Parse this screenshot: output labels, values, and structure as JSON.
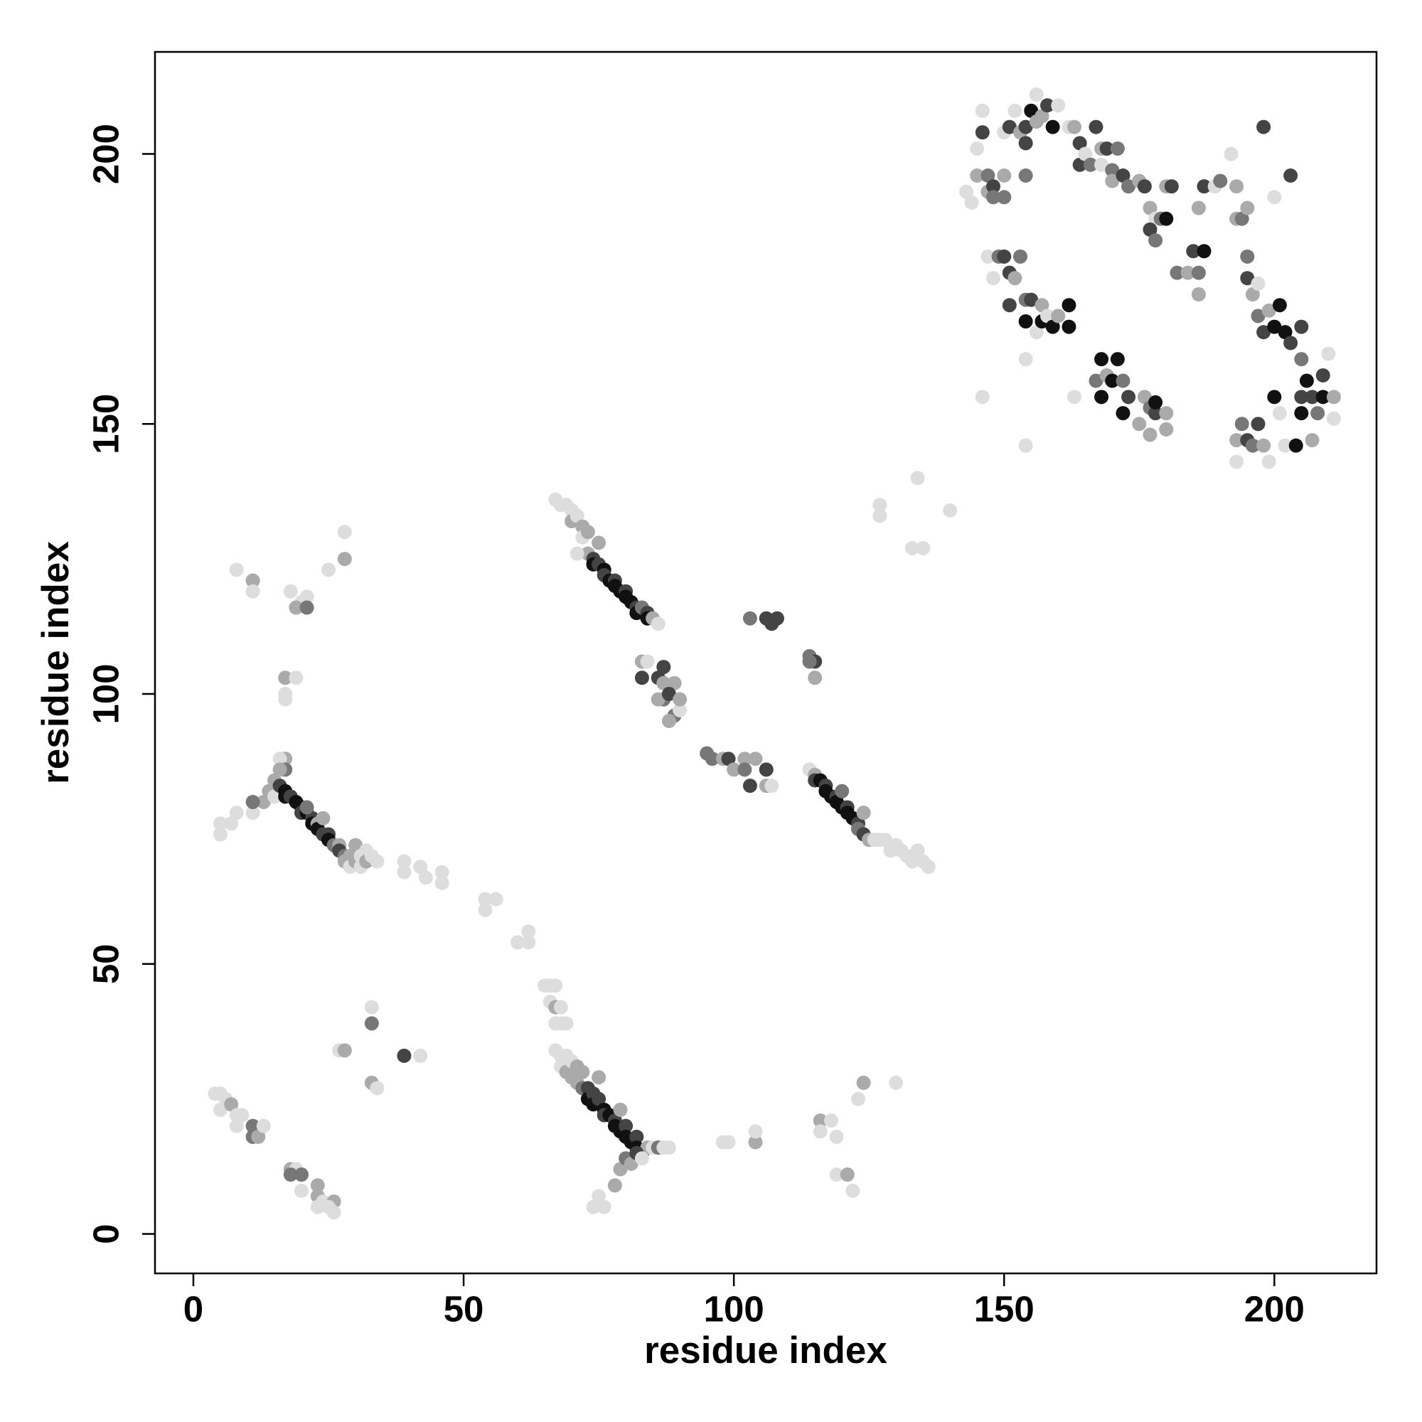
{
  "chart_data": {
    "type": "scatter",
    "x_label": "residue index",
    "y_label": "residue index",
    "xlim": [
      -7.1,
      218.9
    ],
    "ylim": [
      -7.3,
      218.9
    ],
    "xticks": [
      0,
      50,
      100,
      150,
      200
    ],
    "yticks": [
      0,
      50,
      100,
      150,
      200
    ],
    "x": [
      4,
      5,
      6,
      5,
      7,
      8,
      9,
      8,
      11,
      11,
      12,
      13,
      18,
      19,
      18,
      20,
      20,
      23,
      23,
      24,
      26,
      25,
      26,
      23,
      27,
      28,
      33,
      33,
      33,
      34,
      39,
      42,
      67,
      68,
      68,
      69,
      69,
      70,
      70,
      71,
      71,
      72,
      72,
      73,
      73,
      74,
      74,
      75,
      76,
      76,
      77,
      78,
      78,
      79,
      80,
      80,
      81,
      82,
      82,
      83,
      84,
      85,
      86,
      87,
      88,
      75,
      79,
      65,
      66,
      67,
      66,
      67,
      68,
      67,
      68,
      69,
      74,
      75,
      76,
      78,
      79,
      80,
      81,
      82,
      83,
      54,
      54,
      56,
      60,
      62,
      62,
      39,
      39,
      42,
      43,
      46,
      46,
      5,
      5,
      7,
      8,
      11,
      13,
      11,
      14,
      15,
      17,
      19,
      17,
      17,
      18,
      20,
      19,
      21,
      21,
      8,
      11,
      11,
      25,
      28,
      28,
      15,
      16,
      17,
      17,
      18,
      19,
      20,
      20,
      21,
      22,
      22,
      23,
      23,
      24,
      25,
      25,
      26,
      27,
      27,
      28,
      28,
      29,
      29,
      30,
      30,
      31,
      31,
      32,
      32,
      33,
      34,
      21,
      24,
      17,
      16,
      17,
      16,
      67,
      68,
      69,
      70,
      70,
      71,
      72,
      72,
      73,
      73,
      74,
      74,
      75,
      76,
      76,
      77,
      78,
      78,
      79,
      80,
      80,
      81,
      82,
      82,
      83,
      84,
      84,
      85,
      86,
      71,
      75,
      83,
      84,
      87,
      83,
      86,
      87,
      89,
      87,
      86,
      88,
      89,
      88,
      90,
      90,
      95,
      96,
      98,
      99,
      100,
      102,
      102,
      103,
      104,
      106,
      106,
      107,
      103,
      106,
      107,
      108,
      114,
      115,
      114,
      115,
      114,
      115,
      115,
      116,
      117,
      117,
      118,
      119,
      119,
      120,
      121,
      121,
      122,
      123,
      123,
      124,
      125,
      126,
      127,
      128,
      129,
      130,
      131,
      132,
      133,
      134,
      135,
      136,
      120,
      124,
      98,
      99,
      104,
      104,
      116,
      116,
      118,
      119,
      119,
      121,
      122,
      123,
      124,
      130,
      127,
      127,
      134,
      133,
      135,
      140,
      143,
      144,
      145,
      145,
      146,
      146,
      147,
      147,
      148,
      148,
      150,
      150,
      150,
      151,
      152,
      153,
      154,
      154,
      154,
      155,
      156,
      156,
      157,
      158,
      159,
      160,
      162,
      163,
      164,
      164,
      165,
      166,
      167,
      168,
      168,
      169,
      170,
      170,
      171,
      172,
      173,
      175,
      176,
      177,
      178,
      177,
      178,
      179,
      180,
      180,
      181,
      182,
      184,
      185,
      186,
      186,
      187,
      186,
      187,
      189,
      190,
      192,
      193,
      193,
      194,
      195,
      195,
      195,
      196,
      197,
      197,
      198,
      200,
      203,
      147,
      148,
      149,
      150,
      151,
      151,
      152,
      153,
      154,
      154,
      155,
      156,
      157,
      157,
      158,
      159,
      160,
      162,
      162,
      163,
      154,
      154,
      146,
      168,
      167,
      168,
      169,
      170,
      171,
      172,
      172,
      173,
      175,
      176,
      177,
      177,
      178,
      180,
      180,
      178,
      193,
      193,
      194,
      195,
      196,
      197,
      198,
      199,
      200,
      201,
      202,
      204,
      205,
      205,
      206,
      207,
      207,
      208,
      209,
      209,
      210,
      211,
      211,
      198,
      199,
      200,
      201,
      202,
      203,
      205,
      205
    ],
    "values": [
      26,
      26,
      25,
      23,
      24,
      22,
      22,
      20,
      20,
      18,
      18,
      20,
      12,
      12,
      11,
      11,
      8,
      9,
      7,
      6,
      6,
      5,
      4,
      5,
      34,
      34,
      39,
      42,
      28,
      27,
      33,
      33,
      34,
      33,
      31,
      33,
      30,
      32,
      29,
      31,
      28,
      30,
      27,
      27,
      25,
      26,
      24,
      25,
      23,
      22,
      22,
      21,
      20,
      19,
      20,
      18,
      17,
      18,
      16,
      15,
      16,
      16,
      16,
      16,
      16,
      29,
      23,
      46,
      46,
      46,
      43,
      42,
      42,
      39,
      39,
      39,
      5,
      7,
      5,
      9,
      12,
      14,
      13,
      15,
      14,
      62,
      60,
      62,
      54,
      54,
      56,
      69,
      67,
      68,
      66,
      67,
      65,
      76,
      74,
      76,
      78,
      78,
      80,
      80,
      82,
      81,
      103,
      103,
      100,
      99,
      119,
      117,
      116,
      118,
      116,
      123,
      121,
      119,
      123,
      125,
      130,
      84,
      83,
      82,
      81,
      81,
      80,
      79,
      78,
      78,
      77,
      76,
      76,
      75,
      74,
      74,
      73,
      72,
      72,
      71,
      70,
      69,
      70,
      68,
      72,
      69,
      70,
      68,
      71,
      69,
      70,
      69,
      79,
      77,
      88,
      88,
      86,
      86,
      136,
      135,
      135,
      134,
      132,
      133,
      131,
      129,
      130,
      126,
      125,
      124,
      124,
      123,
      122,
      121,
      121,
      120,
      119,
      119,
      118,
      117,
      116,
      115,
      116,
      115,
      114,
      114,
      113,
      126,
      128,
      106,
      106,
      105,
      103,
      103,
      102,
      102,
      99,
      99,
      100,
      96,
      95,
      97,
      99,
      89,
      88,
      88,
      88,
      86,
      88,
      86,
      83,
      88,
      86,
      83,
      83,
      114,
      114,
      113,
      114,
      107,
      106,
      106,
      103,
      86,
      85,
      84,
      84,
      83,
      82,
      81,
      81,
      80,
      79,
      79,
      78,
      77,
      76,
      75,
      74,
      73,
      73,
      73,
      73,
      71,
      72,
      71,
      70,
      69,
      71,
      69,
      68,
      82,
      78,
      17,
      17,
      17,
      19,
      21,
      19,
      21,
      18,
      11,
      11,
      8,
      25,
      28,
      28,
      135,
      133,
      140,
      127,
      127,
      134,
      193,
      191,
      196,
      201,
      204,
      208,
      196,
      193,
      194,
      192,
      196,
      192,
      204,
      205,
      208,
      204,
      205,
      202,
      196,
      208,
      206,
      211,
      207,
      209,
      205,
      209,
      205,
      205,
      202,
      198,
      200,
      198,
      205,
      201,
      198,
      201,
      197,
      195,
      201,
      196,
      194,
      195,
      194,
      190,
      188,
      186,
      184,
      188,
      188,
      194,
      194,
      178,
      178,
      182,
      178,
      174,
      182,
      190,
      194,
      194,
      195,
      200,
      194,
      188,
      188,
      190,
      181,
      177,
      174,
      176,
      170,
      205,
      192,
      196,
      181,
      177,
      181,
      181,
      178,
      172,
      177,
      181,
      173,
      169,
      173,
      167,
      172,
      169,
      170,
      168,
      170,
      168,
      172,
      155,
      162,
      146,
      155,
      162,
      158,
      155,
      159,
      158,
      162,
      158,
      152,
      155,
      150,
      155,
      153,
      148,
      152,
      149,
      152,
      154,
      143,
      147,
      150,
      147,
      146,
      150,
      146,
      143,
      155,
      152,
      146,
      146,
      152,
      155,
      158,
      155,
      147,
      152,
      159,
      155,
      163,
      155,
      151,
      167,
      171,
      168,
      172,
      167,
      165,
      168,
      162
    ],
    "colors": [
      "#ddd",
      "#ddd",
      "#ddd",
      "#ddd",
      "#aaa",
      "#ddd",
      "#ddd",
      "#ddd",
      "#777",
      "#777",
      "#aaa",
      "#ddd",
      "#aaa",
      "#ddd",
      "#777",
      "#777",
      "#ddd",
      "#aaa",
      "#aaa",
      "#ddd",
      "#aaa",
      "#ddd",
      "#ddd",
      "#ddd",
      "#ddd",
      "#aaa",
      "#777",
      "#ddd",
      "#aaa",
      "#ddd",
      "#444",
      "#ddd",
      "#ddd",
      "#ddd",
      "#ddd",
      "#ddd",
      "#aaa",
      "#ddd",
      "#aaa",
      "#aaa",
      "#aaa",
      "#aaa",
      "#777",
      "#444",
      "#111",
      "#444",
      "#111",
      "#444",
      "#111",
      "#444",
      "#111",
      "#444",
      "#111",
      "#111",
      "#444",
      "#111",
      "#111",
      "#444",
      "#111",
      "#111",
      "#aaa",
      "#ddd",
      "#777",
      "#ddd",
      "#ddd",
      "#aaa",
      "#aaa",
      "#ddd",
      "#ddd",
      "#ddd",
      "#ddd",
      "#aaa",
      "#ddd",
      "#ddd",
      "#ddd",
      "#ddd",
      "#ddd",
      "#ddd",
      "#ddd",
      "#aaa",
      "#aaa",
      "#777",
      "#aaa",
      "#444",
      "#ddd",
      "#ddd",
      "#ddd",
      "#ddd",
      "#ddd",
      "#ddd",
      "#ddd",
      "#ddd",
      "#ddd",
      "#ddd",
      "#ddd",
      "#ddd",
      "#ddd",
      "#ddd",
      "#ddd",
      "#ddd",
      "#ddd",
      "#ddd",
      "#aaa",
      "#777",
      "#aaa",
      "#ddd",
      "#aaa",
      "#ddd",
      "#ddd",
      "#ddd",
      "#ddd",
      "#ddd",
      "#aaa",
      "#ddd",
      "#777",
      "#ddd",
      "#aaa",
      "#ddd",
      "#ddd",
      "#aaa",
      "#ddd",
      "#aaa",
      "#444",
      "#111",
      "#111",
      "#444",
      "#111",
      "#111",
      "#444",
      "#111",
      "#444",
      "#111",
      "#aaa",
      "#111",
      "#444",
      "#444",
      "#111",
      "#777",
      "#aaa",
      "#444",
      "#777",
      "#aaa",
      "#aaa",
      "#ddd",
      "#aaa",
      "#aaa",
      "#ddd",
      "#ddd",
      "#ddd",
      "#aaa",
      "#ddd",
      "#ddd",
      "#777",
      "#aaa",
      "#aaa",
      "#ddd",
      "#777",
      "#aaa",
      "#ddd",
      "#ddd",
      "#ddd",
      "#ddd",
      "#aaa",
      "#ddd",
      "#aaa",
      "#ddd",
      "#aaa",
      "#aaa",
      "#444",
      "#111",
      "#444",
      "#111",
      "#444",
      "#111",
      "#444",
      "#111",
      "#111",
      "#444",
      "#111",
      "#111",
      "#444",
      "#111",
      "#777",
      "#444",
      "#111",
      "#aaa",
      "#ddd",
      "#ddd",
      "#aaa",
      "#aaa",
      "#ddd",
      "#444",
      "#444",
      "#444",
      "#aaa",
      "#aaa",
      "#777",
      "#aaa",
      "#444",
      "#777",
      "#aaa",
      "#ddd",
      "#aaa",
      "#777",
      "#777",
      "#aaa",
      "#444",
      "#aaa",
      "#aaa",
      "#777",
      "#444",
      "#aaa",
      "#444",
      "#aaa",
      "#ddd",
      "#777",
      "#444",
      "#444",
      "#444",
      "#777",
      "#444",
      "#777",
      "#aaa",
      "#ddd",
      "#aaa",
      "#444",
      "#111",
      "#444",
      "#111",
      "#111",
      "#444",
      "#111",
      "#111",
      "#444",
      "#111",
      "#111",
      "#444",
      "#777",
      "#444",
      "#aaa",
      "#ddd",
      "#ddd",
      "#ddd",
      "#ddd",
      "#ddd",
      "#ddd",
      "#ddd",
      "#ddd",
      "#ddd",
      "#ddd",
      "#ddd",
      "#777",
      "#aaa",
      "#ddd",
      "#ddd",
      "#aaa",
      "#ddd",
      "#aaa",
      "#ddd",
      "#ddd",
      "#ddd",
      "#ddd",
      "#aaa",
      "#ddd",
      "#ddd",
      "#aaa",
      "#ddd",
      "#ddd",
      "#ddd",
      "#ddd",
      "#ddd",
      "#ddd",
      "#ddd",
      "#ddd",
      "#ddd",
      "#aaa",
      "#ddd",
      "#444",
      "#ddd",
      "#777",
      "#aaa",
      "#444",
      "#777",
      "#aaa",
      "#777",
      "#ddd",
      "#444",
      "#ddd",
      "#aaa",
      "#444",
      "#444",
      "#777",
      "#111",
      "#aaa",
      "#ddd",
      "#aaa",
      "#444",
      "#111",
      "#ddd",
      "#ddd",
      "#aaa",
      "#444",
      "#444",
      "#ddd",
      "#777",
      "#444",
      "#aaa",
      "#ddd",
      "#444",
      "#777",
      "#aaa",
      "#777",
      "#444",
      "#777",
      "#aaa",
      "#444",
      "#aaa",
      "#ddd",
      "#444",
      "#777",
      "#777",
      "#111",
      "#aaa",
      "#444",
      "#777",
      "#aaa",
      "#444",
      "#777",
      "#aaa",
      "#111",
      "#aaa",
      "#444",
      "#ddd",
      "#777",
      "#ddd",
      "#aaa",
      "#aaa",
      "#777",
      "#aaa",
      "#777",
      "#444",
      "#aaa",
      "#ddd",
      "#777",
      "#444",
      "#ddd",
      "#444",
      "#ddd",
      "#ddd",
      "#777",
      "#444",
      "#444",
      "#444",
      "#aaa",
      "#777",
      "#777",
      "#111",
      "#444",
      "#ddd",
      "#aaa",
      "#111",
      "#ddd",
      "#111",
      "#aaa",
      "#111",
      "#111",
      "#ddd",
      "#ddd",
      "#ddd",
      "#ddd",
      "#111",
      "#777",
      "#111",
      "#aaa",
      "#111",
      "#111",
      "#777",
      "#111",
      "#444",
      "#aaa",
      "#aaa",
      "#777",
      "#aaa",
      "#444",
      "#aaa",
      "#aaa",
      "#111",
      "#ddd",
      "#aaa",
      "#777",
      "#444",
      "#777",
      "#444",
      "#aaa",
      "#ddd",
      "#111",
      "#ddd",
      "#ddd",
      "#111",
      "#111",
      "#444",
      "#111",
      "#444",
      "#aaa",
      "#777",
      "#444",
      "#111",
      "#ddd",
      "#aaa",
      "#ddd",
      "#444",
      "#aaa",
      "#111",
      "#111",
      "#111",
      "#444",
      "#444",
      "#777"
    ]
  }
}
